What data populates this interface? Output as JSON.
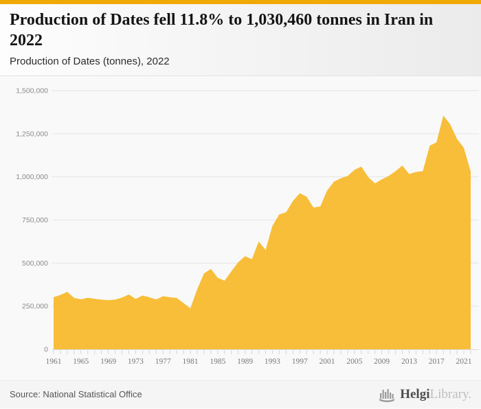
{
  "accent_color": "#F0A802",
  "header": {
    "title": "Production of Dates fell 11.8% to 1,030,460 tonnes in Iran in 2022",
    "subtitle": "Production of Dates (tonnes), 2022"
  },
  "footer": {
    "source": "Source: National Statistical Office",
    "logo_icon": "bar-chart-building-icon",
    "logo_text_primary": "Helgi",
    "logo_text_secondary": "Library."
  },
  "chart_data": {
    "type": "area",
    "title": "Production of Dates (tonnes), 2022",
    "series_name": "Production of Dates in Iran (tonnes)",
    "xlabel": "",
    "ylabel": "",
    "ylim": [
      0,
      1500000
    ],
    "grid": "horizontal",
    "legend": "none",
    "area_color": "#F8BE39",
    "background": "#f9f9f9",
    "gridline_color": "#e4e4e4",
    "baseline_color": "#d9d9d9",
    "tick_color": "#ccd4e2",
    "x_label_color": "#787878",
    "y_label_color": "#8a8a8a",
    "x": [
      1961,
      1962,
      1963,
      1964,
      1965,
      1966,
      1967,
      1968,
      1969,
      1970,
      1971,
      1972,
      1973,
      1974,
      1975,
      1976,
      1977,
      1978,
      1979,
      1980,
      1981,
      1982,
      1983,
      1984,
      1985,
      1986,
      1987,
      1988,
      1989,
      1990,
      1991,
      1992,
      1993,
      1994,
      1995,
      1996,
      1997,
      1998,
      1999,
      2000,
      2001,
      2002,
      2003,
      2004,
      2005,
      2006,
      2007,
      2008,
      2009,
      2010,
      2011,
      2012,
      2013,
      2014,
      2015,
      2016,
      2017,
      2018,
      2019,
      2020,
      2021,
      2022
    ],
    "values": [
      302000,
      315000,
      333000,
      298000,
      290000,
      299000,
      293000,
      288000,
      285000,
      288000,
      300000,
      318000,
      292000,
      312000,
      302000,
      289000,
      308000,
      302000,
      298000,
      268000,
      238000,
      348000,
      440000,
      466000,
      415000,
      398000,
      452000,
      505000,
      540000,
      522000,
      625000,
      576000,
      715000,
      782000,
      795000,
      860000,
      905000,
      885000,
      822000,
      828000,
      920000,
      972000,
      992000,
      1005000,
      1040000,
      1060000,
      1000000,
      962000,
      985000,
      1005000,
      1032000,
      1066000,
      1016000,
      1028000,
      1033000,
      1180000,
      1200000,
      1355000,
      1305000,
      1220000,
      1168322,
      1030460
    ],
    "x_tick_labels": [
      "1961",
      "1965",
      "1969",
      "1973",
      "1977",
      "1981",
      "1985",
      "1989",
      "1993",
      "1997",
      "2001",
      "2005",
      "2009",
      "2013",
      "2017",
      "2021"
    ],
    "y_ticks": [
      {
        "value": 0,
        "label": "0"
      },
      {
        "value": 250000,
        "label": "250,000"
      },
      {
        "value": 500000,
        "label": "500,000"
      },
      {
        "value": 750000,
        "label": "750,000"
      },
      {
        "value": 1000000,
        "label": "1,000,000"
      },
      {
        "value": 1250000,
        "label": "1,250,000"
      },
      {
        "value": 1500000,
        "label": "1,500,000"
      }
    ]
  }
}
